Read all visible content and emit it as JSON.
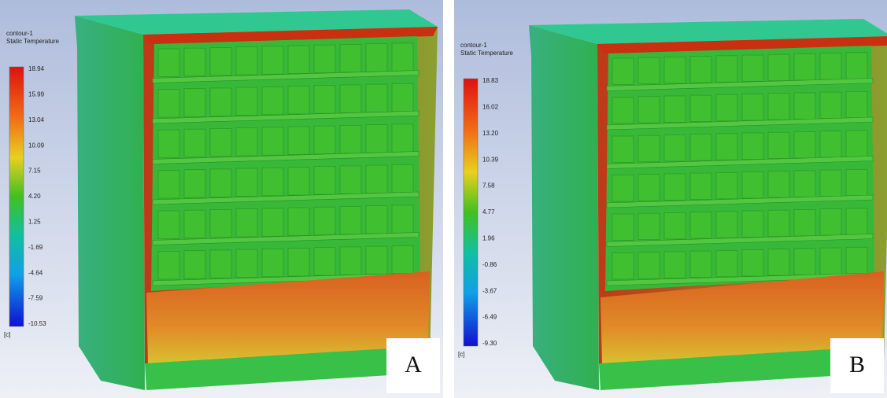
{
  "panels": [
    {
      "letter": "A",
      "legend": {
        "title": "contour-1",
        "subtitle": "Static Temperature",
        "unit": "[c]",
        "ticks": [
          "18.94",
          "15.99",
          "13.04",
          "10.09",
          "7.15",
          "4.20",
          "1.25",
          "-1.69",
          "-4.64",
          "-7.59",
          "-10.53"
        ]
      }
    },
    {
      "letter": "B",
      "legend": {
        "title": "contour-1",
        "subtitle": "Static Temperature",
        "unit": "[c]",
        "ticks": [
          "18.83",
          "16.02",
          "13.20",
          "10.39",
          "7.58",
          "4.77",
          "1.96",
          "-0.86",
          "-3.67",
          "-6.49",
          "-9.30"
        ]
      }
    }
  ]
}
